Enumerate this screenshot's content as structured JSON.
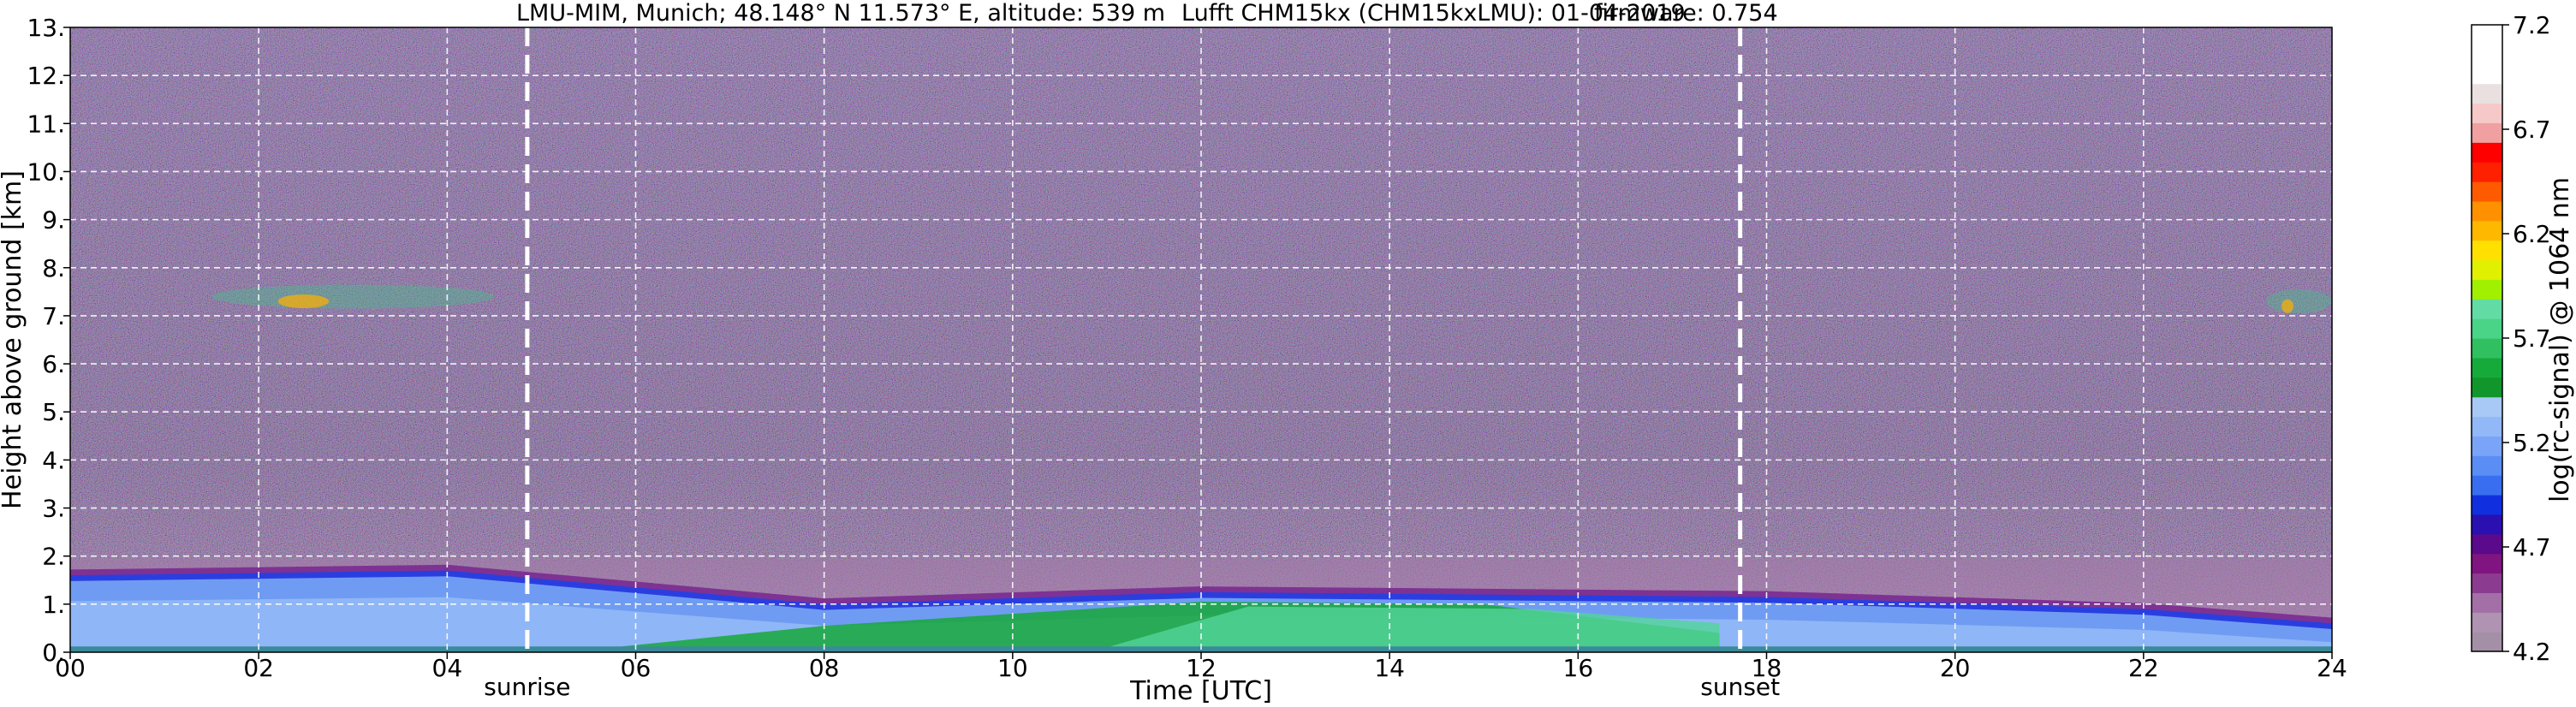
{
  "chart_data": {
    "type": "heatmap",
    "title": {
      "site": "LMU-MIM, Munich; 48.148° N 11.573° E, altitude: 539 m",
      "instrument": "Lufft CHM15kx (CHM15kxLMU): 01-04-2019",
      "firmware": "firmware: 0.754"
    },
    "xlabel": "Time [UTC]",
    "ylabel": "Height above ground [km]",
    "xlim": [
      0,
      24
    ],
    "ylim": [
      0,
      13
    ],
    "x_ticks": [
      {
        "value": 0,
        "label": "00"
      },
      {
        "value": 2,
        "label": "02"
      },
      {
        "value": 4,
        "label": "04"
      },
      {
        "value": 6,
        "label": "06"
      },
      {
        "value": 8,
        "label": "08"
      },
      {
        "value": 10,
        "label": "10"
      },
      {
        "value": 12,
        "label": "12"
      },
      {
        "value": 14,
        "label": "14"
      },
      {
        "value": 16,
        "label": "16"
      },
      {
        "value": 18,
        "label": "18"
      },
      {
        "value": 20,
        "label": "20"
      },
      {
        "value": 22,
        "label": "22"
      },
      {
        "value": 24,
        "label": "24"
      }
    ],
    "y_ticks": [
      {
        "value": 0,
        "label": "0."
      },
      {
        "value": 1,
        "label": "1."
      },
      {
        "value": 2,
        "label": "2."
      },
      {
        "value": 3,
        "label": "3."
      },
      {
        "value": 4,
        "label": "4."
      },
      {
        "value": 5,
        "label": "5."
      },
      {
        "value": 6,
        "label": "6."
      },
      {
        "value": 7,
        "label": "7."
      },
      {
        "value": 8,
        "label": "8."
      },
      {
        "value": 9,
        "label": "9."
      },
      {
        "value": 10,
        "label": "10."
      },
      {
        "value": 11,
        "label": "11."
      },
      {
        "value": 12,
        "label": "12."
      },
      {
        "value": 13,
        "label": "13."
      }
    ],
    "grid": true,
    "events": [
      {
        "label": "sunrise",
        "time": 4.85
      },
      {
        "label": "sunset",
        "time": 17.72
      }
    ],
    "colorbar": {
      "label": "log(rc-signal) @ 1064 nm",
      "range": [
        4.2,
        7.2
      ],
      "tick_labels": [
        "4.2",
        "4.7",
        "5.2",
        "5.7",
        "6.2",
        "6.7",
        "7.2"
      ],
      "tick_values": [
        4.2,
        4.7,
        5.2,
        5.7,
        6.2,
        6.7,
        7.2
      ],
      "colors": [
        "#a490a6",
        "#b092b2",
        "#a270a6",
        "#8c3c90",
        "#801480",
        "#5a0a8a",
        "#2a10b0",
        "#1030e0",
        "#3a6ef0",
        "#5a8ef5",
        "#7aa4f8",
        "#92b8f8",
        "#a8c8f6",
        "#10962a",
        "#16aa3a",
        "#30c060",
        "#4ad488",
        "#62dca4",
        "#a0f000",
        "#e0f000",
        "#ffe000",
        "#ffb800",
        "#ff9000",
        "#ff5a00",
        "#ff2000",
        "#ff0000",
        "#f0a0a0",
        "#f6c8c8",
        "#eae0e0",
        "#ffffff",
        "#ffffff",
        "#ffffff"
      ]
    },
    "features": {
      "background_noise_color": "#6a5a88",
      "boundary_layer_top_km": 1.95,
      "mixing_layer": [
        {
          "time": 0,
          "top_km": 1.6
        },
        {
          "time": 4,
          "top_km": 1.7
        },
        {
          "time": 8,
          "top_km": 1.0
        },
        {
          "time": 12,
          "top_km": 1.25
        },
        {
          "time": 18,
          "top_km": 1.15
        },
        {
          "time": 22,
          "top_km": 0.9
        },
        {
          "time": 24,
          "top_km": 0.6
        }
      ],
      "cirrus": [
        {
          "time_start": 1.5,
          "time_end": 4.5,
          "height_km": 7.4
        },
        {
          "time_start": 23.3,
          "time_end": 24,
          "height_km": 7.3
        }
      ]
    }
  }
}
